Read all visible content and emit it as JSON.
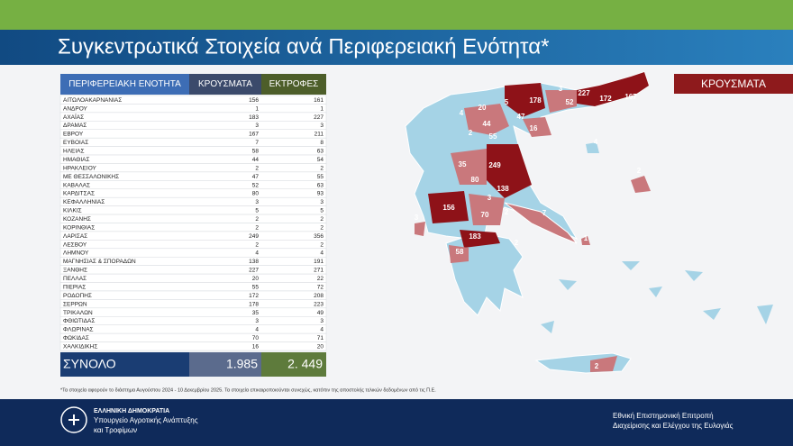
{
  "header": {
    "title": "Συγκεντρωτικά Στοιχεία ανά Περιφερειακή Ενότητα*"
  },
  "table": {
    "columns": [
      "ΠΕΡΙΦΕΡΕΙΑΚΗ ΕΝΟΤΗΤΑ",
      "ΚΡΟΥΣΜΑΤΑ",
      "ΕΚΤΡΟΦΕΣ"
    ],
    "rows": [
      [
        "ΑΙΤΩΛΟΑΚΑΡΝΑΝΙΑΣ",
        156,
        161
      ],
      [
        "ΑΝΔΡΟΥ",
        1,
        1
      ],
      [
        "ΑΧΑΪΑΣ",
        183,
        227
      ],
      [
        "ΔΡΑΜΑΣ",
        3,
        3
      ],
      [
        "ΕΒΡΟΥ",
        167,
        211
      ],
      [
        "ΕΥΒΟΙΑΣ",
        7,
        8
      ],
      [
        "ΗΛΕΙΑΣ",
        58,
        63
      ],
      [
        "ΗΜΑΘΙΑΣ",
        44,
        54
      ],
      [
        "ΗΡΑΚΛΕΙΟΥ",
        2,
        2
      ],
      [
        "ΜΕ ΘΕΣΣΑΛΟΝΙΚΗΣ",
        47,
        55
      ],
      [
        "ΚΑΒΑΛΑΣ",
        52,
        63
      ],
      [
        "ΚΑΡΔΙΤΣΑΣ",
        80,
        93
      ],
      [
        "ΚΕΦΑΛΛΗΝΙΑΣ",
        3,
        3
      ],
      [
        "ΚΙΛΚΙΣ",
        5,
        5
      ],
      [
        "ΚΟΖΑΝΗΣ",
        2,
        2
      ],
      [
        "ΚΟΡΙΝΘΙΑΣ",
        2,
        2
      ],
      [
        "ΛΑΡΙΣΑΣ",
        249,
        356
      ],
      [
        "ΛΕΣΒΟΥ",
        2,
        2
      ],
      [
        "ΛΗΜΝΟΥ",
        4,
        4
      ],
      [
        "ΜΑΓΝΗΣΙΑΣ & ΣΠΟΡΑΔΩΝ",
        138,
        191
      ],
      [
        "ΞΑΝΘΗΣ",
        227,
        271
      ],
      [
        "ΠΕΛΛΑΣ",
        20,
        22
      ],
      [
        "ΠΙΕΡΙΑΣ",
        55,
        72
      ],
      [
        "ΡΟΔΟΠΗΣ",
        172,
        208
      ],
      [
        "ΣΕΡΡΩΝ",
        178,
        223
      ],
      [
        "ΤΡΙΚΑΛΩΝ",
        35,
        49
      ],
      [
        "ΦΘΙΩΤΙΔΑΣ",
        3,
        3
      ],
      [
        "ΦΛΩΡΙΝΑΣ",
        4,
        4
      ],
      [
        "ΦΩΚΙΔΑΣ",
        70,
        71
      ],
      [
        "ΧΑΛΚΙΔΙΚΗΣ",
        16,
        20
      ]
    ],
    "total": [
      "ΣΥΝΟΛΟ",
      "1.985",
      "2. 449"
    ]
  },
  "map": {
    "legend": "ΚΡΟΥΣΜΑΤΑ",
    "labels": [
      178,
      3,
      227,
      172,
      167,
      20,
      5,
      52,
      4,
      47,
      44,
      2,
      16,
      55,
      4,
      35,
      249,
      80,
      138,
      3,
      2,
      156,
      70,
      7,
      3,
      183,
      2,
      1,
      58,
      2,
      2
    ]
  },
  "footnote": "*Τα στοιχεία αφορούν το διάστημα Αυγούστου 2024 - 10 Δεκεμβρίου 2025. Τα στοιχεία επικαιροποιούνται συνεχώς, κατόπιν της αποστολής τελικών δεδομένων από τις Π.Ε.",
  "footer": {
    "left": [
      "ΕΛΛΗΝΙΚΗ ΔΗΜΟΚΡΑΤΙΑ",
      "Υπουργείο Αγροτικής Ανάπτυξης",
      "και Τροφίμων"
    ],
    "right": [
      "Εθνική Επιστημονική Επιτροπή",
      "Διαχείρισης και Ελέγχου της Ευλογιάς"
    ]
  }
}
